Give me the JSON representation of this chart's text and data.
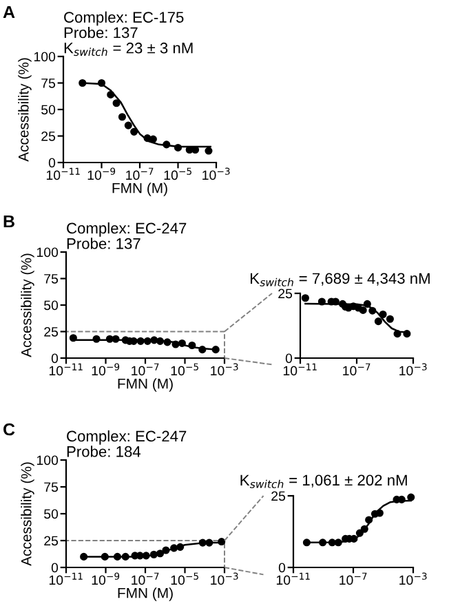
{
  "chart_data": [
    {
      "type": "scatter",
      "title": "Complex: EC-175\nProbe: 137\nK$_{switch}$ = 23 ± 3 nM",
      "annotations": [
        "A"
      ],
      "xlabel": "FMN (M)",
      "ylabel": "Accessibility (%)",
      "log": "x",
      "xlim": [
        1e-11,
        0.001
      ],
      "ylim": [
        0,
        100
      ],
      "xticks": [
        {
          "value": 1e-11,
          "label": "10$^{−11}$"
        },
        {
          "value": 1e-09,
          "label": "10$^{−9}$"
        },
        {
          "value": 1e-07,
          "label": "10$^{−7}$"
        },
        {
          "value": 1e-05,
          "label": "10$^{−5}$"
        },
        {
          "value": 0.001,
          "label": "10$^{−3}$"
        }
      ],
      "yticks": [
        0,
        25,
        50,
        75,
        100
      ],
      "series": [
        {
          "marker": "circle",
          "color": "#000000",
          "x": [
            1e-10,
            1e-09,
            3e-09,
            6e-09,
            1.2e-08,
            2.5e-08,
            5e-08,
            2.5e-07,
            5e-07,
            2.5e-06,
            1e-05,
            4e-05,
            8e-05,
            0.0004
          ],
          "values": [
            75,
            75,
            64,
            56,
            43,
            35,
            29,
            23,
            22,
            17,
            14,
            12,
            12,
            11
          ]
        },
        {
          "type": "line",
          "marker": "none",
          "color": "#000000",
          "x": [
            1e-10,
            1e-09,
            3e-09,
            1e-08,
            2.3e-08,
            5e-08,
            1e-07,
            3e-07,
            1e-06,
            1e-05,
            0.0005
          ],
          "values": [
            75,
            74,
            68,
            57,
            45,
            35,
            27,
            20,
            17,
            15,
            15
          ]
        }
      ]
    },
    {
      "type": "scatter",
      "title": "Complex: EC-247\nProbe: 137",
      "annotations": [
        "B"
      ],
      "xlabel": "FMN (M)",
      "ylabel": "Accessibility (%)",
      "log": "x",
      "xlim": [
        1e-11,
        0.001
      ],
      "ylim": [
        0,
        100
      ],
      "xticks": [
        {
          "value": 1e-11,
          "label": "10$^{−11}$"
        },
        {
          "value": 1e-09,
          "label": "10$^{−9}$"
        },
        {
          "value": 1e-07,
          "label": "10$^{−7}$"
        },
        {
          "value": 1e-05,
          "label": "10$^{−5}$"
        },
        {
          "value": 0.001,
          "label": "10$^{−3}$"
        }
      ],
      "yticks": [
        0,
        25,
        50,
        75,
        100
      ],
      "series": [
        {
          "marker": "circle",
          "color": "#000000",
          "x": [
            2.3e-11,
            3.4e-10,
            1.6e-09,
            3.2e-09,
            1e-08,
            1.6e-08,
            2.6e-08,
            5.8e-08,
            1.3e-07,
            2.8e-07,
            5.6e-07,
            1.3e-06,
            3.4e-06,
            7.2e-06,
            2.3e-05,
            7.6e-05,
            0.00036
          ],
          "values": [
            19,
            18,
            18,
            18,
            17,
            16,
            16,
            16,
            16,
            17,
            16,
            15,
            13,
            14,
            12,
            8,
            8
          ]
        },
        {
          "type": "line",
          "marker": "none",
          "color": "#000000",
          "x": [
            2.3e-11,
            1e-07,
            1e-06,
            3e-06,
            1e-05,
            3e-05,
            0.0001,
            0.00036
          ],
          "values": [
            17,
            17,
            16,
            15,
            12,
            10,
            9,
            8
          ]
        }
      ]
    },
    {
      "type": "scatter",
      "title": "K$_{switch}$ = 7,689 ± 4,343 nM",
      "log": "x",
      "xlim": [
        1e-11,
        0.001
      ],
      "ylim": [
        0,
        25
      ],
      "xticks": [
        {
          "value": 1e-11,
          "label": "10$^{−11}$"
        },
        {
          "value": 1e-07,
          "label": "10$^{−7}$"
        },
        {
          "value": 0.001,
          "label": "10$^{−3}$"
        }
      ],
      "yticks": [
        0,
        25
      ],
      "series": [
        {
          "marker": "circle",
          "color": "#000000",
          "x": [
            2.3e-11,
            3.4e-10,
            1.6e-09,
            3.2e-09,
            1e-08,
            1.6e-08,
            2.6e-08,
            5.8e-08,
            1.3e-07,
            2.8e-07,
            5.6e-07,
            1.3e-06,
            3.4e-06,
            7.2e-06,
            2.3e-05,
            7.6e-05,
            0.00036
          ],
          "values": [
            23.2,
            21.8,
            21.8,
            21.8,
            20.9,
            19.8,
            19.4,
            20,
            19.4,
            18.5,
            20.9,
            18.3,
            14.2,
            16.9,
            15.1,
            9.4,
            9.4
          ]
        },
        {
          "type": "line",
          "marker": "none",
          "color": "#000000",
          "x": [
            2.3e-11,
            1e-07,
            5e-07,
            1e-06,
            3e-06,
            1e-05,
            3e-05,
            0.0001,
            0.00036
          ],
          "values": [
            21,
            20.8,
            20.3,
            19.5,
            17.5,
            14,
            11.5,
            10.2,
            10
          ]
        }
      ]
    },
    {
      "type": "scatter",
      "title": "Complex: EC-247\nProbe: 184",
      "annotations": [
        "C"
      ],
      "xlabel": "FMN (M)",
      "ylabel": "Accessibility (%)",
      "log": "x",
      "xlim": [
        1e-11,
        0.001
      ],
      "ylim": [
        0,
        100
      ],
      "xticks": [
        {
          "value": 1e-11,
          "label": "10$^{−11}$"
        },
        {
          "value": 1e-09,
          "label": "10$^{−9}$"
        },
        {
          "value": 1e-07,
          "label": "10$^{−7}$"
        },
        {
          "value": 1e-05,
          "label": "10$^{−5}$"
        },
        {
          "value": 0.001,
          "label": "10$^{−3}$"
        }
      ],
      "yticks": [
        0,
        25,
        50,
        75,
        100
      ],
      "series": [
        {
          "marker": "circle",
          "color": "#000000",
          "x": [
            7.8e-11,
            9.1e-10,
            3.9e-09,
            1e-08,
            3e-08,
            5.4e-08,
            1.1e-07,
            2.7e-07,
            5.6e-07,
            1.1e-06,
            2.8e-06,
            5.8e-06,
            7.9e-05,
            0.00017,
            0.00071
          ],
          "values": [
            10,
            10,
            10,
            10,
            11,
            11,
            11,
            12,
            13,
            16,
            18,
            19,
            23,
            23,
            24
          ]
        },
        {
          "type": "line",
          "marker": "none",
          "color": "#000000",
          "x": [
            7.8e-11,
            1e-08,
            1e-07,
            3e-07,
            1e-06,
            3e-06,
            1e-05,
            3e-05,
            0.0001,
            0.00071
          ],
          "values": [
            10,
            10,
            10,
            12,
            15,
            18,
            21,
            22,
            23,
            23
          ]
        }
      ]
    },
    {
      "type": "scatter",
      "title": "K$_{switch}$ = 1,061 ± 202 nM",
      "log": "x",
      "xlim": [
        1e-11,
        0.001
      ],
      "ylim": [
        0,
        25
      ],
      "xticks": [
        {
          "value": 1e-11,
          "label": "10$^{−11}$"
        },
        {
          "value": 1e-07,
          "label": "10$^{−7}$"
        },
        {
          "value": 0.001,
          "label": "10$^{−3}$"
        }
      ],
      "yticks": [
        0,
        25
      ],
      "series": [
        {
          "marker": "circle",
          "color": "#000000",
          "x": [
            7.8e-11,
            9.1e-10,
            3.9e-09,
            1e-08,
            3e-08,
            5.4e-08,
            1.1e-07,
            2.7e-07,
            5.6e-07,
            1.1e-06,
            2.8e-06,
            5.8e-06,
            7.9e-05,
            0.00017,
            0.00071
          ],
          "values": [
            8.7,
            8.7,
            8.7,
            8.7,
            10,
            10,
            10,
            12,
            13.4,
            16.6,
            18.7,
            19,
            23.7,
            23.7,
            24.5
          ]
        },
        {
          "type": "line",
          "marker": "none",
          "color": "#000000",
          "x": [
            7.8e-11,
            1e-08,
            1e-07,
            3e-07,
            1e-06,
            3e-06,
            1e-05,
            3e-05,
            0.0001,
            0.00071
          ],
          "values": [
            8.7,
            8.8,
            9.5,
            11.5,
            15,
            19,
            21.5,
            22.8,
            23.2,
            23.3
          ]
        }
      ]
    }
  ]
}
